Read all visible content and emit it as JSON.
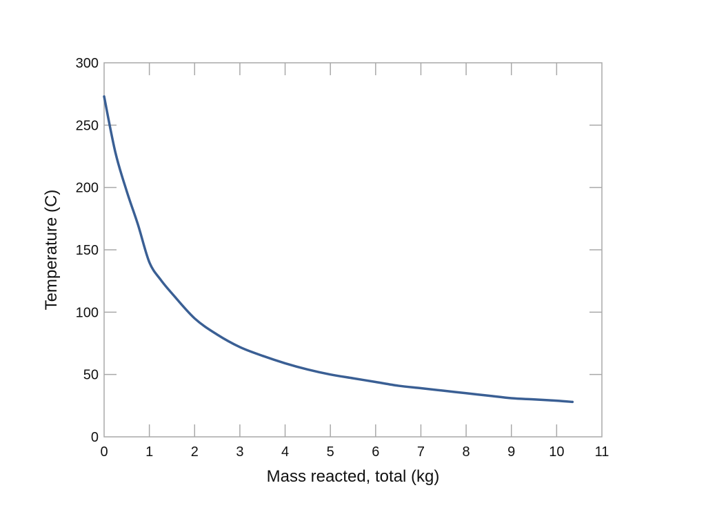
{
  "chart_data": {
    "type": "line",
    "title": "",
    "xlabel": "Mass reacted, total (kg)",
    "ylabel": "Temperature (C)",
    "xlim": [
      0,
      11
    ],
    "ylim": [
      0,
      300
    ],
    "xticks": [
      0,
      1,
      2,
      3,
      4,
      5,
      6,
      7,
      8,
      9,
      10,
      11
    ],
    "yticks": [
      0,
      50,
      100,
      150,
      200,
      250,
      300
    ],
    "grid": false,
    "legend": null,
    "series": [
      {
        "name": "Temperature",
        "color": "#3a5f94",
        "x": [
          0,
          0.25,
          0.5,
          0.75,
          1,
          1.25,
          1.5,
          2,
          2.5,
          3,
          3.5,
          4,
          4.5,
          5,
          5.5,
          6,
          6.5,
          7,
          7.5,
          8,
          8.5,
          9,
          9.5,
          10,
          10.35
        ],
        "y": [
          273,
          228,
          197,
          170,
          140,
          126,
          115,
          95,
          82,
          72,
          65,
          59,
          54,
          50,
          47,
          44,
          41,
          39,
          37,
          35,
          33,
          31,
          30,
          29,
          28
        ]
      }
    ]
  }
}
